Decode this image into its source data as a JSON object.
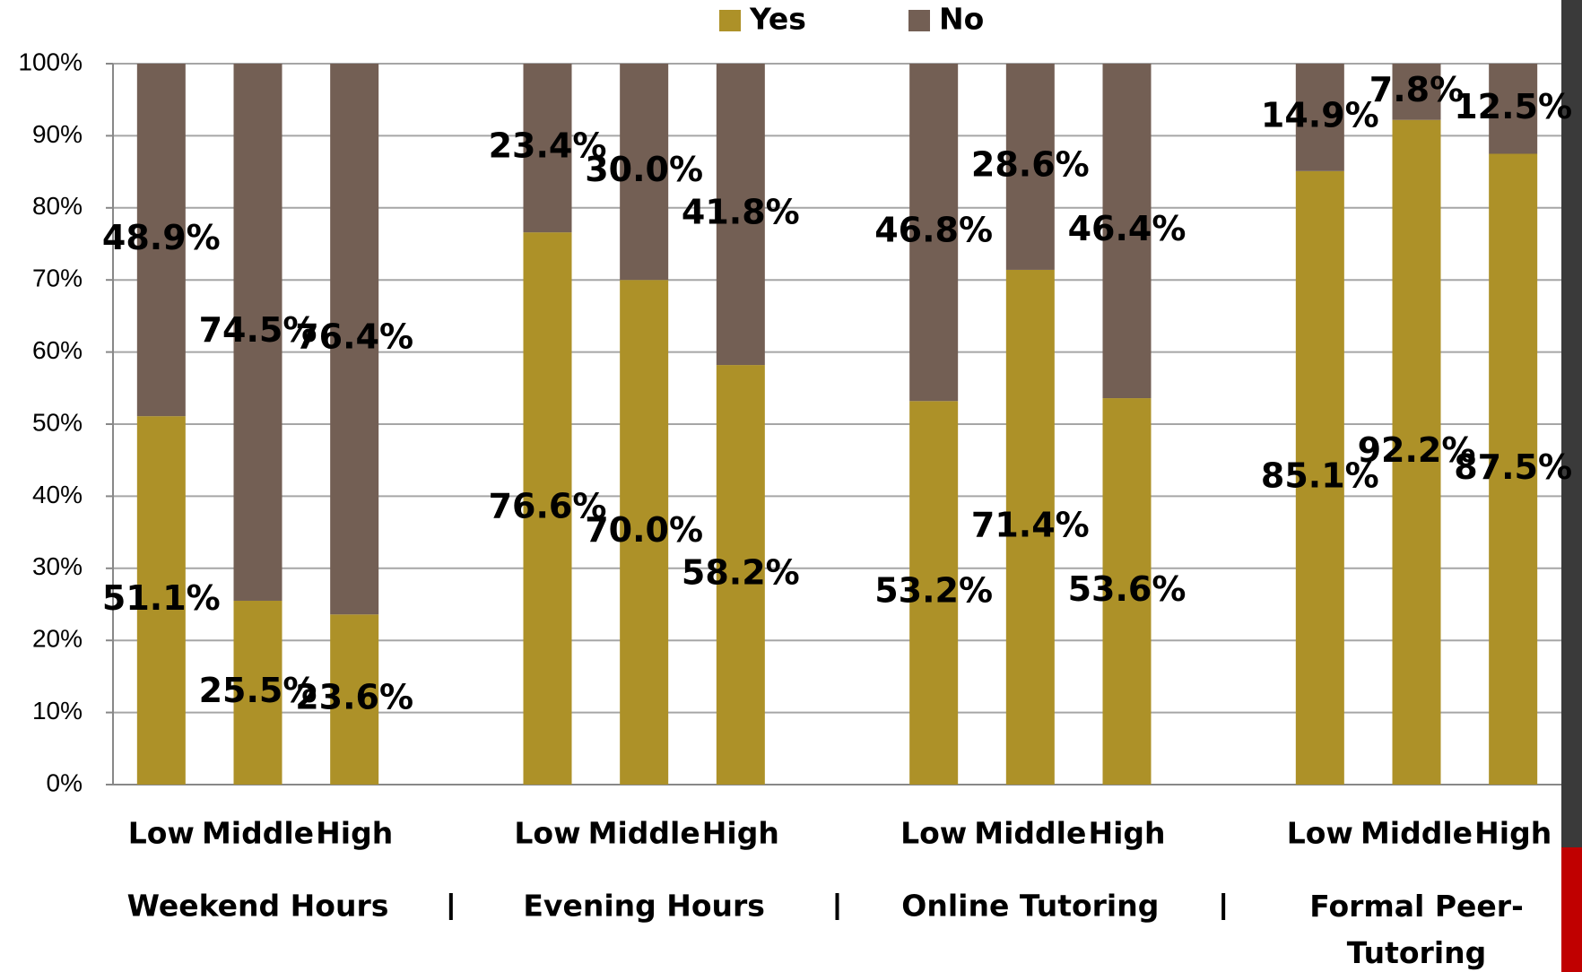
{
  "chart_data": {
    "type": "stacked_bar",
    "legend": "top",
    "grid": true,
    "categories": [
      "Low",
      "Middle",
      "High",
      "Low",
      "Middle",
      "High",
      "Low",
      "Middle",
      "High",
      "Low",
      "Middle",
      "High"
    ],
    "groups": [
      "Weekend Hours",
      "Evening Hours",
      "Online Tutoring",
      "Formal Peer-Tutoring"
    ],
    "ylim": [
      0,
      100
    ],
    "yticks": [
      {
        "value": 0,
        "label": "0%"
      },
      {
        "value": 10,
        "label": "10%"
      },
      {
        "value": 20,
        "label": "20%"
      },
      {
        "value": 30,
        "label": "30%"
      },
      {
        "value": 40,
        "label": "40%"
      },
      {
        "value": 50,
        "label": "50%"
      },
      {
        "value": 60,
        "label": "60%"
      },
      {
        "value": 70,
        "label": "70%"
      },
      {
        "value": 80,
        "label": "80%"
      },
      {
        "value": 90,
        "label": "90%"
      },
      {
        "value": 100,
        "label": "100%"
      }
    ],
    "series": [
      {
        "name": "Yes",
        "color": "#ad9128",
        "values": [
          51.1,
          25.5,
          23.6,
          76.6,
          70.0,
          58.2,
          53.2,
          71.4,
          53.6,
          85.1,
          92.2,
          87.5
        ],
        "value_labels": [
          "51.1%",
          "25.5%",
          "23.6%",
          "76.6%",
          "70.0%",
          "58.2%",
          "53.2%",
          "71.4%",
          "53.6%",
          "85.1%",
          "92.2%",
          "87.5%"
        ]
      },
      {
        "name": "No",
        "color": "#735f54",
        "values": [
          48.9,
          74.5,
          76.4,
          23.4,
          30.0,
          41.8,
          46.8,
          28.6,
          46.4,
          14.9,
          7.8,
          12.5
        ],
        "value_labels": [
          "48.9%",
          "74.5%",
          "76.4%",
          "23.4%",
          "30.0%",
          "41.8%",
          "46.8%",
          "28.6%",
          "46.4%",
          "14.9%",
          "7.8%",
          "12.5%"
        ]
      }
    ]
  }
}
